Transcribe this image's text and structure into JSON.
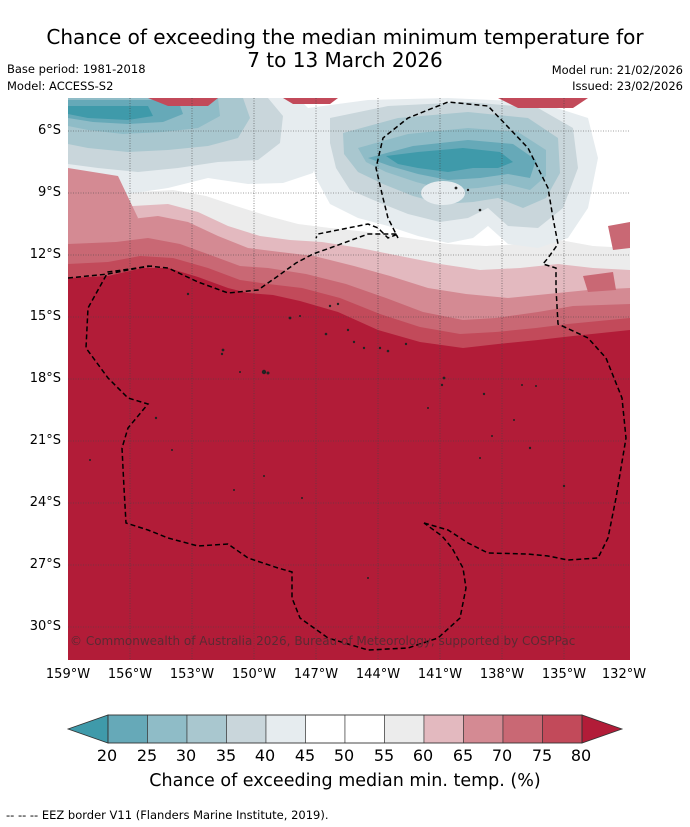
{
  "title": {
    "line1": "Chance of exceeding the median minimum temperature for",
    "line2": "7 to 13 March 2026"
  },
  "meta": {
    "base_period": "Base period: 1981-2018",
    "model": "Model: ACCESS-S2",
    "model_run": "Model run: 21/02/2026",
    "issued": "Issued: 23/02/2026"
  },
  "map": {
    "lat_labels": [
      "6°S",
      "9°S",
      "12°S",
      "15°S",
      "18°S",
      "21°S",
      "24°S",
      "27°S",
      "30°S"
    ],
    "lon_labels": [
      "159°W",
      "156°W",
      "153°W",
      "150°W",
      "147°W",
      "144°W",
      "141°W",
      "138°W",
      "135°W",
      "132°W"
    ],
    "copyright": "© Commonwealth of Australia 2026, Bureau of Meteorology, supported by COSPPac",
    "colors": {
      "c_lt20": "#3f9aaa",
      "c20": "#66a9b8",
      "c25": "#8fbcc7",
      "c30": "#a9c7cf",
      "c35": "#c9d6db",
      "c40": "#e6ecef",
      "c50": "#ffffff",
      "c55": "#ececec",
      "c60": "#e3b9bf",
      "c65": "#d48a93",
      "c70": "#c96874",
      "c75": "#c24a5a",
      "c_gt80": "#b21c38"
    }
  },
  "colorbar": {
    "tick_labels": [
      "20",
      "25",
      "30",
      "35",
      "40",
      "45",
      "50",
      "55",
      "60",
      "65",
      "70",
      "75",
      "80"
    ],
    "title": "Chance of exceeding median min. temp. (%)",
    "colors": [
      "#3f9aaa",
      "#66a9b8",
      "#8fbcc7",
      "#a9c7cf",
      "#c9d6db",
      "#e6ecef",
      "#ffffff",
      "#ffffff",
      "#ececec",
      "#e3b9bf",
      "#d48a93",
      "#c96874",
      "#c24a5a",
      "#b21c38"
    ]
  },
  "footer": {
    "legend_text": "-- -- -- EEZ border V11 (Flanders Marine Institute, 2019)."
  }
}
